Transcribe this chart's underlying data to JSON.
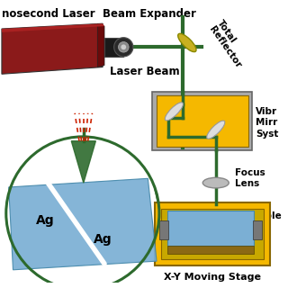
{
  "bg_color": "#ffffff",
  "labels": {
    "nosecond_laser": "nosecond Laser",
    "beam_expander": "Beam Expander",
    "laser_beam": "Laser Beam",
    "total_reflector": "Total\nReflector",
    "vibr_mirror": "Vibr\nMirr\nSyst",
    "focus_lens": "Focus\nLens",
    "sample": "Sample",
    "xy_stage": "X-Y Moving Stage",
    "ag1": "Ag",
    "ag2": "Ag"
  },
  "colors": {
    "laser_body": "#8B1A1A",
    "laser_face": "#C44444",
    "beam_green": "#2D6A2D",
    "yellow_box": "#F5B800",
    "yellow_inner": "#C49000",
    "mirror_gold": "#C8B020",
    "sample_blue": "#7BAFD4",
    "sample_brown": "#8B6914",
    "circle_outline": "#2D6A2D",
    "red_dashed": "#CC2200",
    "lens_gray": "#AAAAAA",
    "box_gray": "#AAAAAA",
    "text_color": "#000000",
    "white": "#FFFFFF",
    "dark_gray": "#555555"
  }
}
